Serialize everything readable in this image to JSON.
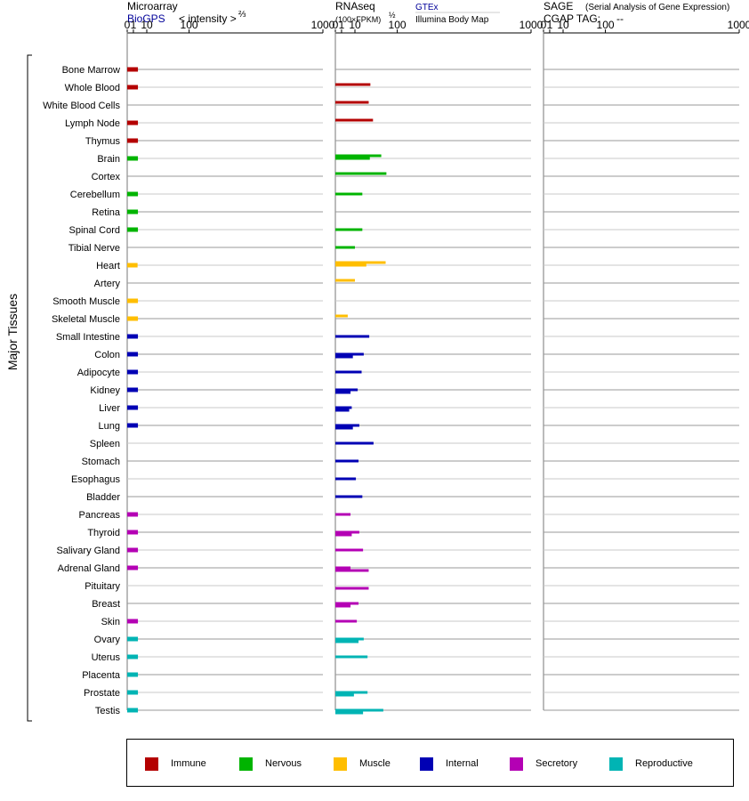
{
  "header": {
    "microarray": {
      "title": "Microarray",
      "source": "BioGPS",
      "scale_label": "< intensity >",
      "scale_power": "⅔",
      "ticks": [
        "0",
        "1",
        "10",
        "100",
        "1000"
      ]
    },
    "rnaseq": {
      "title": "RNAseq",
      "unit_label": "(100×FPKM)",
      "unit_power": "½",
      "source_gtex": "GTEx",
      "source_ibm": "Illumina Body Map",
      "ticks": [
        "0",
        "1",
        "10",
        "100",
        "1000"
      ]
    },
    "sage": {
      "title": "SAGE",
      "subtitle": "(Serial Analysis of Gene Expression)",
      "tag_label": "CGAP TAG:",
      "tag_value": "--",
      "ticks": [
        "0",
        "1",
        "10",
        "100",
        "1000"
      ]
    }
  },
  "y_group_label": "Major Tissues",
  "colors": {
    "Immune": "#b40000",
    "Nervous": "#00b400",
    "Muscle": "#ffbe00",
    "Internal": "#0000b4",
    "Secretory": "#b400b4",
    "Reproductive": "#00b4b4"
  },
  "legend": [
    "Immune",
    "Nervous",
    "Muscle",
    "Internal",
    "Secretory",
    "Reproductive"
  ],
  "chart_data": {
    "type": "bar",
    "title": "",
    "x_scale": "intensity^(2/3) (Microarray) / (100×FPKM)^(1/2) (RNAseq), axis ticks 0–1000",
    "xlim": [
      0,
      1000
    ],
    "categories": [
      "Bone Marrow",
      "Whole Blood",
      "White Blood Cells",
      "Lymph Node",
      "Thymus",
      "Brain",
      "Cortex",
      "Cerebellum",
      "Retina",
      "Spinal Cord",
      "Tibial Nerve",
      "Heart",
      "Artery",
      "Smooth Muscle",
      "Skeletal Muscle",
      "Small Intestine",
      "Colon",
      "Adipocyte",
      "Kidney",
      "Liver",
      "Lung",
      "Spleen",
      "Stomach",
      "Esophagus",
      "Bladder",
      "Pancreas",
      "Thyroid",
      "Salivary Gland",
      "Adrenal Gland",
      "Pituitary",
      "Breast",
      "Skin",
      "Ovary",
      "Uterus",
      "Placenta",
      "Prostate",
      "Testis"
    ],
    "groups": [
      "Immune",
      "Immune",
      "Immune",
      "Immune",
      "Immune",
      "Nervous",
      "Nervous",
      "Nervous",
      "Nervous",
      "Nervous",
      "Nervous",
      "Muscle",
      "Muscle",
      "Muscle",
      "Muscle",
      "Internal",
      "Internal",
      "Internal",
      "Internal",
      "Internal",
      "Internal",
      "Internal",
      "Internal",
      "Internal",
      "Internal",
      "Secretory",
      "Secretory",
      "Secretory",
      "Secretory",
      "Secretory",
      "Secretory",
      "Secretory",
      "Reproductive",
      "Reproductive",
      "Reproductive",
      "Reproductive",
      "Reproductive"
    ],
    "series": [
      {
        "name": "BioGPS",
        "values": [
          3,
          3,
          null,
          3,
          3,
          3,
          null,
          3,
          3,
          3,
          null,
          2.8,
          null,
          3,
          3,
          3,
          3,
          3,
          3,
          3,
          3,
          null,
          null,
          null,
          null,
          3,
          3,
          3,
          3,
          null,
          null,
          3,
          3,
          3,
          3,
          3,
          3
        ]
      },
      {
        "name": "GTEx",
        "values": [
          null,
          32,
          29,
          37,
          null,
          55,
          68,
          null,
          null,
          null,
          null,
          66,
          10,
          null,
          4,
          null,
          null,
          null,
          null,
          null,
          null,
          null,
          null,
          null,
          null,
          null,
          null,
          null,
          null,
          null,
          null,
          null,
          null,
          null,
          null,
          null,
          null
        ]
      },
      {
        "name": "Illumina Body Map",
        "values": [
          null,
          null,
          null,
          null,
          null,
          31,
          null,
          19,
          null,
          19,
          10,
          25,
          null,
          null,
          null,
          30,
          21,
          18,
          13,
          7,
          15,
          38,
          14,
          11,
          19,
          6,
          15,
          20,
          6,
          null,
          14,
          12,
          21,
          27,
          null,
          27,
          60
        ]
      },
      {
        "name": "Illumina Body Map (second row)",
        "values": [
          null,
          null,
          null,
          null,
          null,
          null,
          null,
          null,
          null,
          null,
          null,
          null,
          null,
          null,
          null,
          null,
          8,
          null,
          6,
          5,
          8,
          null,
          null,
          null,
          null,
          null,
          7,
          null,
          29,
          29,
          6,
          null,
          14,
          null,
          null,
          9,
          20
        ]
      }
    ]
  }
}
